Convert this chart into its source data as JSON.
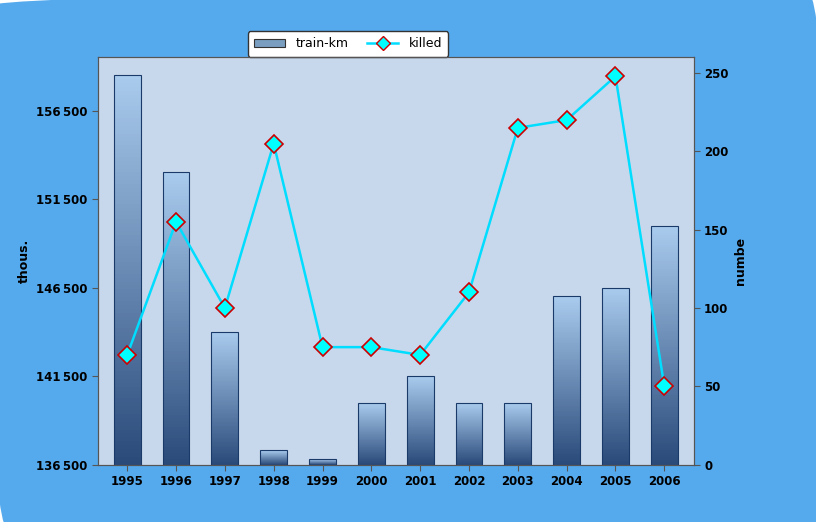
{
  "years": [
    1995,
    1996,
    1997,
    1998,
    1999,
    2000,
    2001,
    2002,
    2003,
    2004,
    2005,
    2006
  ],
  "train_km": [
    158500,
    153000,
    144000,
    137300,
    136800,
    140000,
    141500,
    140000,
    140000,
    146000,
    146500,
    150000
  ],
  "killed": [
    70,
    155,
    100,
    205,
    75,
    75,
    70,
    110,
    215,
    220,
    248,
    50
  ],
  "bar_color_light": "#aaccee",
  "bar_color_dark": "#2a4a7a",
  "line_color": "#00ddff",
  "marker_face": "#00ffff",
  "marker_edge": "#cc0000",
  "bg_outer": "#55aaee",
  "bg_inner_color": "#c8d8ec",
  "ylim_left": [
    136500,
    159500
  ],
  "ylim_right": [
    0,
    260
  ],
  "yticks_left": [
    136500,
    141500,
    146500,
    151500,
    156500
  ],
  "yticks_right": [
    0,
    50,
    100,
    150,
    200,
    250
  ],
  "ylabel_left": "thous.",
  "ylabel_right": "numbe",
  "legend_labels": [
    "train-km",
    "killed"
  ],
  "bar_width": 0.55
}
